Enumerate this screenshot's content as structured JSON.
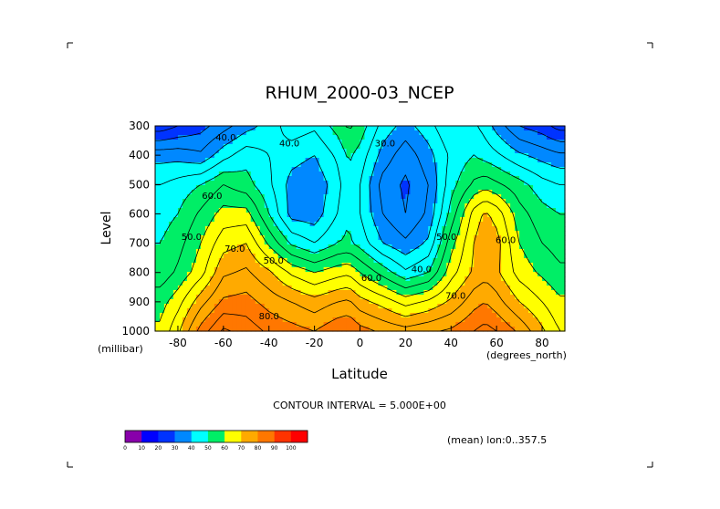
{
  "title": "RHUM_2000-03_NCEP",
  "contour_interval": "CONTOUR INTERVAL = 5.000E+00",
  "footnote": "(mean) lon:0..357.5",
  "chart_data": {
    "type": "heatmap",
    "title": "RHUM_2000-03_NCEP",
    "xlabel": "Latitude",
    "ylabel": "Level",
    "x_units": "(degrees_north)",
    "y_units": "(millibar)",
    "xlim": [
      -90,
      90
    ],
    "ylim": [
      1000,
      300
    ],
    "x_ticks": [
      -80,
      -60,
      -40,
      -20,
      0,
      20,
      40,
      60,
      80
    ],
    "y_ticks": [
      300,
      400,
      500,
      600,
      700,
      800,
      900,
      1000
    ],
    "x_tick_labels": [
      "-80",
      "-60",
      "-40",
      "-20",
      "0",
      "20",
      "40",
      "60",
      "80"
    ],
    "y_tick_labels": [
      "300",
      "400",
      "500",
      "600",
      "700",
      "800",
      "900",
      "1000"
    ],
    "x": [
      -87.5,
      -80,
      -70,
      -60,
      -50,
      -40,
      -30,
      -20,
      -10,
      -5,
      0,
      10,
      20,
      30,
      40,
      50,
      55,
      60,
      70,
      80,
      87.5
    ],
    "levels": [
      300,
      400,
      500,
      600,
      700,
      800,
      900,
      1000
    ],
    "values": [
      [
        22,
        25,
        28,
        33,
        38,
        42,
        48,
        46,
        52,
        56,
        53,
        43,
        38,
        43,
        50,
        46,
        43,
        38,
        30,
        27,
        23
      ],
      [
        38,
        38,
        36,
        43,
        48,
        45,
        42,
        40,
        46,
        51,
        48,
        38,
        32,
        38,
        46,
        50,
        48,
        46,
        41,
        38,
        36
      ],
      [
        45,
        47,
        50,
        55,
        52,
        46,
        38,
        36,
        43,
        49,
        45,
        33,
        29,
        35,
        48,
        56,
        58,
        56,
        52,
        47,
        45
      ],
      [
        48,
        50,
        56,
        62,
        62,
        50,
        38,
        37,
        45,
        50,
        45,
        35,
        30,
        36,
        52,
        67,
        71,
        68,
        57,
        52,
        50
      ],
      [
        50,
        53,
        60,
        68,
        70,
        59,
        49,
        45,
        50,
        51,
        48,
        40,
        36,
        41,
        58,
        70,
        74,
        72,
        60,
        55,
        53
      ],
      [
        52,
        56,
        63,
        74,
        76,
        71,
        64,
        60,
        63,
        64,
        60,
        53,
        46,
        50,
        63,
        71,
        73,
        71,
        63,
        59,
        56
      ],
      [
        58,
        63,
        73,
        81,
        82,
        78,
        75,
        72,
        75,
        76,
        72,
        68,
        63,
        66,
        71,
        78,
        80,
        77,
        70,
        65,
        61
      ],
      [
        61,
        69,
        82,
        91,
        88,
        84,
        82,
        80,
        84,
        85,
        82,
        79,
        77,
        79,
        81,
        85,
        87,
        85,
        79,
        71,
        65
      ]
    ],
    "contour_interval": 5,
    "contour_labels": [
      {
        "text": "40.0",
        "lat": -59,
        "lev": 340
      },
      {
        "text": "40.0",
        "lat": -31,
        "lev": 360
      },
      {
        "text": "30.0",
        "lat": 11,
        "lev": 360
      },
      {
        "text": "60.0",
        "lat": -65,
        "lev": 540
      },
      {
        "text": "50.0",
        "lat": -74,
        "lev": 680
      },
      {
        "text": "70.0",
        "lat": -55,
        "lev": 720
      },
      {
        "text": "50.0",
        "lat": -38,
        "lev": 760
      },
      {
        "text": "60.0",
        "lat": 5,
        "lev": 820
      },
      {
        "text": "40.0",
        "lat": 27,
        "lev": 790
      },
      {
        "text": "50.0",
        "lat": 38,
        "lev": 680
      },
      {
        "text": "60.0",
        "lat": 64,
        "lev": 690
      },
      {
        "text": "70.0",
        "lat": 42,
        "lev": 880
      },
      {
        "text": "80.0",
        "lat": -40,
        "lev": 950
      }
    ],
    "colorbar": {
      "ticks": [
        "0",
        "10",
        "20",
        "30",
        "40",
        "50",
        "60",
        "70",
        "80",
        "90",
        "100"
      ],
      "colors": [
        "#8800aa",
        "#0000ff",
        "#0033ff",
        "#0088ff",
        "#00ffff",
        "#00ee66",
        "#ffff00",
        "#ffaa00",
        "#ff7700",
        "#ff3300",
        "#ff0000"
      ]
    }
  }
}
